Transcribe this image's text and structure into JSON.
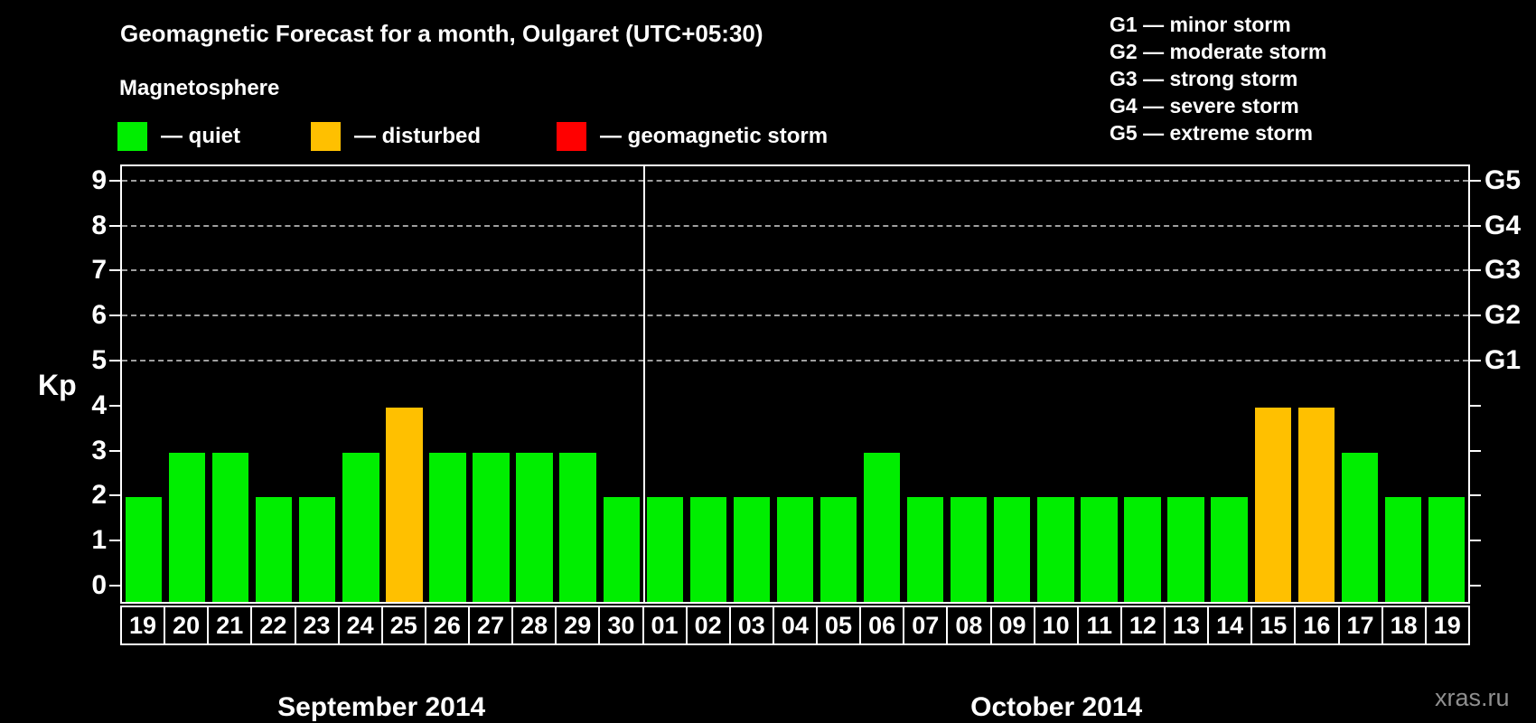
{
  "title": "Geomagnetic Forecast for a month, Oulgaret (UTC+05:30)",
  "legend": {
    "heading": "Magnetosphere",
    "items": [
      {
        "key": "quiet",
        "label": "— quiet",
        "color": "#00ee00",
        "x": 130
      },
      {
        "key": "disturbed",
        "label": "— disturbed",
        "color": "#ffc000",
        "x": 344
      },
      {
        "key": "storm",
        "label": "— geomagnetic storm",
        "color": "#ff0000",
        "x": 616
      }
    ]
  },
  "g_scale_legend": [
    "G1 — minor storm",
    "G2 — moderate storm",
    "G3 — strong storm",
    "G4 — severe storm",
    "G5 — extreme storm"
  ],
  "watermark": "xras.ru",
  "chart_data": {
    "type": "bar",
    "ylabel": "Kp",
    "ylim": [
      0,
      9
    ],
    "yticks": [
      0,
      1,
      2,
      3,
      4,
      5,
      6,
      7,
      8,
      9
    ],
    "gridlines_at": [
      5,
      6,
      7,
      8,
      9
    ],
    "grid": true,
    "right_axis_labels": [
      {
        "label": "G1",
        "kp": 5
      },
      {
        "label": "G2",
        "kp": 6
      },
      {
        "label": "G3",
        "kp": 7
      },
      {
        "label": "G4",
        "kp": 8
      },
      {
        "label": "G5",
        "kp": 9
      }
    ],
    "status_colors": {
      "quiet": "#00ee00",
      "disturbed": "#ffc000",
      "storm": "#ff0000"
    },
    "months": [
      {
        "label": "September 2014",
        "days": [
          {
            "day": "19",
            "kp": 2,
            "status": "quiet"
          },
          {
            "day": "20",
            "kp": 3,
            "status": "quiet"
          },
          {
            "day": "21",
            "kp": 3,
            "status": "quiet"
          },
          {
            "day": "22",
            "kp": 2,
            "status": "quiet"
          },
          {
            "day": "23",
            "kp": 2,
            "status": "quiet"
          },
          {
            "day": "24",
            "kp": 3,
            "status": "quiet"
          },
          {
            "day": "25",
            "kp": 4,
            "status": "disturbed"
          },
          {
            "day": "26",
            "kp": 3,
            "status": "quiet"
          },
          {
            "day": "27",
            "kp": 3,
            "status": "quiet"
          },
          {
            "day": "28",
            "kp": 3,
            "status": "quiet"
          },
          {
            "day": "29",
            "kp": 3,
            "status": "quiet"
          },
          {
            "day": "30",
            "kp": 2,
            "status": "quiet"
          }
        ]
      },
      {
        "label": "October 2014",
        "days": [
          {
            "day": "01",
            "kp": 2,
            "status": "quiet"
          },
          {
            "day": "02",
            "kp": 2,
            "status": "quiet"
          },
          {
            "day": "03",
            "kp": 2,
            "status": "quiet"
          },
          {
            "day": "04",
            "kp": 2,
            "status": "quiet"
          },
          {
            "day": "05",
            "kp": 2,
            "status": "quiet"
          },
          {
            "day": "06",
            "kp": 3,
            "status": "quiet"
          },
          {
            "day": "07",
            "kp": 2,
            "status": "quiet"
          },
          {
            "day": "08",
            "kp": 2,
            "status": "quiet"
          },
          {
            "day": "09",
            "kp": 2,
            "status": "quiet"
          },
          {
            "day": "10",
            "kp": 2,
            "status": "quiet"
          },
          {
            "day": "11",
            "kp": 2,
            "status": "quiet"
          },
          {
            "day": "12",
            "kp": 2,
            "status": "quiet"
          },
          {
            "day": "13",
            "kp": 2,
            "status": "quiet"
          },
          {
            "day": "14",
            "kp": 2,
            "status": "quiet"
          },
          {
            "day": "15",
            "kp": 4,
            "status": "disturbed"
          },
          {
            "day": "16",
            "kp": 4,
            "status": "disturbed"
          },
          {
            "day": "17",
            "kp": 3,
            "status": "quiet"
          },
          {
            "day": "18",
            "kp": 2,
            "status": "quiet"
          },
          {
            "day": "19",
            "kp": 2,
            "status": "quiet"
          }
        ]
      }
    ]
  }
}
